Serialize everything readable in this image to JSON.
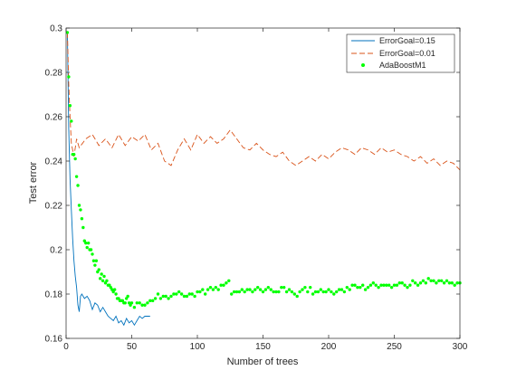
{
  "chart_data": {
    "type": "line",
    "xlabel": "Number of trees",
    "ylabel": "Test error",
    "xlim": [
      0,
      300
    ],
    "ylim": [
      0.16,
      0.3
    ],
    "xticks": [
      "0",
      "50",
      "100",
      "150",
      "200",
      "250",
      "300"
    ],
    "yticks": [
      "0.16",
      "0.18",
      "0.2",
      "0.22",
      "0.24",
      "0.26",
      "0.28",
      "0.3"
    ],
    "grid": false,
    "legend_position": "top-right",
    "series": [
      {
        "name": "ErrorGoal=0.15",
        "style": "solid",
        "color": "#0072BD",
        "x": [
          1,
          2,
          3,
          4,
          5,
          6,
          7,
          8,
          9,
          10,
          11,
          12,
          14,
          16,
          18,
          20,
          22,
          24,
          26,
          28,
          30,
          32,
          34,
          36,
          38,
          40,
          42,
          44,
          46,
          48,
          50,
          52,
          54,
          56,
          58,
          60,
          62,
          64
        ],
        "y": [
          0.298,
          0.255,
          0.232,
          0.218,
          0.205,
          0.195,
          0.188,
          0.183,
          0.175,
          0.172,
          0.179,
          0.18,
          0.178,
          0.179,
          0.177,
          0.173,
          0.176,
          0.175,
          0.172,
          0.174,
          0.172,
          0.17,
          0.169,
          0.168,
          0.17,
          0.167,
          0.168,
          0.166,
          0.169,
          0.167,
          0.168,
          0.166,
          0.168,
          0.17,
          0.169,
          0.17,
          0.17,
          0.17
        ]
      },
      {
        "name": "ErrorGoal=0.01",
        "style": "dashed",
        "color": "#D95319",
        "x": [
          1,
          2,
          3,
          4,
          5,
          6,
          8,
          10,
          15,
          20,
          25,
          30,
          35,
          40,
          45,
          50,
          55,
          60,
          65,
          70,
          75,
          80,
          85,
          90,
          95,
          100,
          105,
          110,
          115,
          120,
          125,
          130,
          135,
          140,
          145,
          150,
          155,
          160,
          165,
          170,
          175,
          180,
          185,
          190,
          195,
          200,
          205,
          210,
          215,
          220,
          225,
          230,
          235,
          240,
          245,
          250,
          255,
          260,
          265,
          270,
          275,
          280,
          285,
          290,
          295,
          300
        ],
        "y": [
          0.298,
          0.275,
          0.26,
          0.248,
          0.245,
          0.242,
          0.25,
          0.246,
          0.25,
          0.252,
          0.247,
          0.25,
          0.246,
          0.252,
          0.247,
          0.251,
          0.249,
          0.252,
          0.245,
          0.248,
          0.24,
          0.238,
          0.245,
          0.25,
          0.245,
          0.252,
          0.248,
          0.251,
          0.248,
          0.25,
          0.254,
          0.25,
          0.246,
          0.245,
          0.248,
          0.245,
          0.243,
          0.242,
          0.244,
          0.24,
          0.238,
          0.24,
          0.242,
          0.24,
          0.243,
          0.241,
          0.244,
          0.246,
          0.245,
          0.243,
          0.246,
          0.245,
          0.243,
          0.246,
          0.244,
          0.245,
          0.243,
          0.242,
          0.24,
          0.242,
          0.239,
          0.241,
          0.238,
          0.24,
          0.239,
          0.236
        ]
      },
      {
        "name": "AdaBoostM1",
        "style": "markers",
        "color": "#00FF00",
        "x": [
          1,
          2,
          3,
          4,
          5,
          6,
          7,
          8,
          9,
          10,
          11,
          12,
          13,
          14,
          15,
          16,
          17,
          18,
          19,
          20,
          21,
          22,
          23,
          24,
          25,
          26,
          27,
          28,
          29,
          30,
          31,
          32,
          33,
          34,
          35,
          36,
          37,
          38,
          39,
          40,
          41,
          42,
          43,
          44,
          45,
          46,
          47,
          48,
          49,
          50,
          52,
          54,
          56,
          58,
          60,
          62,
          64,
          66,
          68,
          70,
          72,
          74,
          76,
          78,
          80,
          82,
          84,
          86,
          88,
          90,
          92,
          94,
          96,
          98,
          100,
          102,
          104,
          106,
          108,
          110,
          112,
          114,
          116,
          118,
          120,
          122,
          124,
          126,
          128,
          130,
          132,
          134,
          136,
          138,
          140,
          142,
          144,
          146,
          148,
          150,
          152,
          154,
          156,
          158,
          160,
          162,
          164,
          166,
          168,
          170,
          172,
          174,
          176,
          178,
          180,
          182,
          184,
          186,
          188,
          190,
          192,
          194,
          196,
          198,
          200,
          202,
          204,
          206,
          208,
          210,
          212,
          214,
          216,
          218,
          220,
          222,
          224,
          226,
          228,
          230,
          232,
          234,
          236,
          238,
          240,
          242,
          244,
          246,
          248,
          250,
          252,
          254,
          256,
          258,
          260,
          262,
          264,
          266,
          268,
          270,
          272,
          274,
          276,
          278,
          280,
          282,
          284,
          286,
          288,
          290,
          292,
          294,
          296,
          298,
          300
        ],
        "y": [
          0.298,
          0.278,
          0.265,
          0.258,
          0.243,
          0.243,
          0.241,
          0.233,
          0.229,
          0.22,
          0.218,
          0.214,
          0.21,
          0.204,
          0.203,
          0.201,
          0.203,
          0.2,
          0.2,
          0.198,
          0.195,
          0.193,
          0.195,
          0.19,
          0.191,
          0.187,
          0.189,
          0.186,
          0.188,
          0.185,
          0.186,
          0.184,
          0.184,
          0.183,
          0.182,
          0.181,
          0.182,
          0.18,
          0.178,
          0.178,
          0.177,
          0.177,
          0.177,
          0.176,
          0.176,
          0.178,
          0.179,
          0.176,
          0.175,
          0.176,
          0.174,
          0.176,
          0.176,
          0.175,
          0.175,
          0.176,
          0.177,
          0.177,
          0.178,
          0.18,
          0.178,
          0.179,
          0.179,
          0.178,
          0.179,
          0.18,
          0.18,
          0.181,
          0.18,
          0.179,
          0.179,
          0.18,
          0.18,
          0.179,
          0.181,
          0.181,
          0.182,
          0.18,
          0.182,
          0.183,
          0.182,
          0.183,
          0.182,
          0.184,
          0.184,
          0.185,
          0.186,
          0.18,
          0.181,
          0.181,
          0.181,
          0.182,
          0.181,
          0.182,
          0.182,
          0.181,
          0.182,
          0.183,
          0.182,
          0.181,
          0.182,
          0.183,
          0.182,
          0.181,
          0.181,
          0.181,
          0.183,
          0.183,
          0.181,
          0.182,
          0.181,
          0.18,
          0.179,
          0.181,
          0.182,
          0.183,
          0.181,
          0.183,
          0.18,
          0.181,
          0.181,
          0.182,
          0.181,
          0.181,
          0.182,
          0.181,
          0.18,
          0.181,
          0.182,
          0.182,
          0.181,
          0.183,
          0.182,
          0.184,
          0.184,
          0.183,
          0.183,
          0.184,
          0.182,
          0.183,
          0.184,
          0.185,
          0.184,
          0.183,
          0.184,
          0.184,
          0.184,
          0.184,
          0.183,
          0.184,
          0.184,
          0.185,
          0.185,
          0.184,
          0.183,
          0.184,
          0.186,
          0.185,
          0.184,
          0.185,
          0.186,
          0.185,
          0.187,
          0.186,
          0.186,
          0.185,
          0.186,
          0.186,
          0.185,
          0.186,
          0.185,
          0.185,
          0.184,
          0.185,
          0.185
        ]
      }
    ]
  }
}
